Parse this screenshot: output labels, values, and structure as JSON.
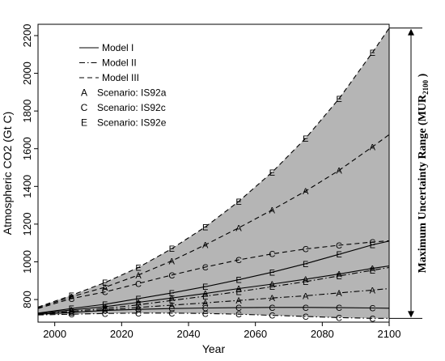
{
  "chart_data": {
    "type": "line",
    "title": "",
    "xlabel": "Year",
    "ylabel": "Atmospheric CO2 (Gt C)",
    "xlim": [
      1995,
      2100
    ],
    "ylim": [
      680,
      2260
    ],
    "x_ticks": [
      2000,
      2020,
      2040,
      2060,
      2080,
      2100
    ],
    "y_ticks": [
      800,
      1000,
      1200,
      1400,
      1600,
      1800,
      2000,
      2200
    ],
    "x": [
      1995,
      2005,
      2015,
      2025,
      2035,
      2045,
      2055,
      2065,
      2075,
      2085,
      2095,
      2100
    ],
    "legend": [
      {
        "label": "Model I",
        "style": "solid"
      },
      {
        "label": "Model II",
        "style": "dashdot"
      },
      {
        "label": "Model III",
        "style": "dashed"
      },
      {
        "label": "Scenario: IS92a",
        "marker": "A"
      },
      {
        "label": "Scenario: IS92c",
        "marker": "C"
      },
      {
        "label": "Scenario: IS92e",
        "marker": "E"
      }
    ],
    "marker_x": [
      2005,
      2015,
      2025,
      2035,
      2045,
      2055,
      2065,
      2075,
      2085,
      2095
    ],
    "series": [
      {
        "model": "Model I",
        "scenario": "IS92a",
        "marker": "A",
        "style": "solid",
        "values": [
          725,
          745,
          762,
          785,
          808,
          832,
          858,
          882,
          908,
          935,
          965,
          978
        ]
      },
      {
        "model": "Model I",
        "scenario": "IS92c",
        "marker": "C",
        "style": "solid",
        "values": [
          722,
          732,
          742,
          748,
          752,
          755,
          757,
          758,
          758,
          757,
          755,
          754
        ]
      },
      {
        "model": "Model I",
        "scenario": "IS92e",
        "marker": "E",
        "style": "solid",
        "values": [
          728,
          752,
          775,
          805,
          835,
          868,
          905,
          945,
          990,
          1040,
          1090,
          1110
        ]
      },
      {
        "model": "Model II",
        "scenario": "IS92a",
        "marker": "A",
        "style": "dashdot",
        "values": [
          720,
          732,
          745,
          758,
          770,
          782,
          795,
          808,
          820,
          835,
          850,
          858
        ]
      },
      {
        "model": "Model II",
        "scenario": "IS92c",
        "marker": "C",
        "style": "dashdot",
        "values": [
          718,
          722,
          726,
          728,
          728,
          726,
          722,
          716,
          710,
          704,
          700,
          700
        ]
      },
      {
        "model": "Model II",
        "scenario": "IS92e",
        "marker": "E",
        "style": "dashdot",
        "values": [
          722,
          738,
          752,
          772,
          795,
          818,
          842,
          868,
          895,
          925,
          955,
          970
        ]
      },
      {
        "model": "Model III",
        "scenario": "IS92a",
        "marker": "A",
        "style": "dashed",
        "values": [
          755,
          815,
          865,
          930,
          1005,
          1090,
          1180,
          1275,
          1375,
          1485,
          1610,
          1675
        ]
      },
      {
        "model": "Model III",
        "scenario": "IS92c",
        "marker": "C",
        "style": "dashed",
        "values": [
          752,
          805,
          840,
          885,
          930,
          972,
          1010,
          1042,
          1068,
          1088,
          1105,
          1112
        ]
      },
      {
        "model": "Model III",
        "scenario": "IS92e",
        "marker": "E",
        "style": "dashed",
        "values": [
          760,
          822,
          890,
          970,
          1070,
          1185,
          1320,
          1475,
          1655,
          1865,
          2110,
          2240
        ]
      }
    ],
    "uncertainty_range": {
      "label": "Maximum Uncertainty Range (MUR",
      "label_subscript": "2100",
      "label_suffix": " )",
      "fill_color": "#b5b5b5",
      "lower_series": "Model II / IS92c",
      "upper_series": "Model III / IS92e",
      "at_year": 2100,
      "min": 700,
      "max": 2240
    },
    "grid": false,
    "legend_position": "top-left"
  }
}
